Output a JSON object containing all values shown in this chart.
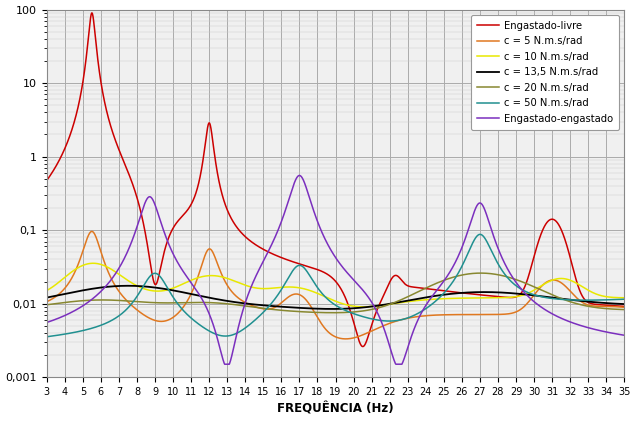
{
  "title": "",
  "xlabel": "FREQUÊNCIA (Hz)",
  "ylabel": "",
  "xlim": [
    3,
    35
  ],
  "ylim": [
    0.001,
    100
  ],
  "yticks": [
    0.001,
    0.01,
    0.1,
    1,
    10,
    100
  ],
  "ytick_labels": [
    "0,001",
    "0,01",
    "0,1",
    "1",
    "10",
    "100"
  ],
  "xticks": [
    3,
    4,
    5,
    6,
    7,
    8,
    9,
    10,
    11,
    12,
    13,
    14,
    15,
    16,
    17,
    18,
    19,
    20,
    21,
    22,
    23,
    24,
    25,
    26,
    27,
    28,
    29,
    30,
    31,
    32,
    33,
    34,
    35
  ],
  "legend": [
    {
      "label": "Engastado-livre",
      "color": "#CC0000"
    },
    {
      "label": "c = 5 N.m.s/rad",
      "color": "#E07820"
    },
    {
      "label": "c = 10 N.m.s/rad",
      "color": "#E8E800"
    },
    {
      "label": "c = 13,5 N.m.s/rad",
      "color": "#000000"
    },
    {
      "label": "c = 20 N.m.s/rad",
      "color": "#888830"
    },
    {
      "label": "c = 50 N.m.s/rad",
      "color": "#209090"
    },
    {
      "label": "Engastado-engastado",
      "color": "#7B2FBE"
    }
  ],
  "bg_color": "#FFFFFF",
  "ax_bg": "#F0F0F0"
}
